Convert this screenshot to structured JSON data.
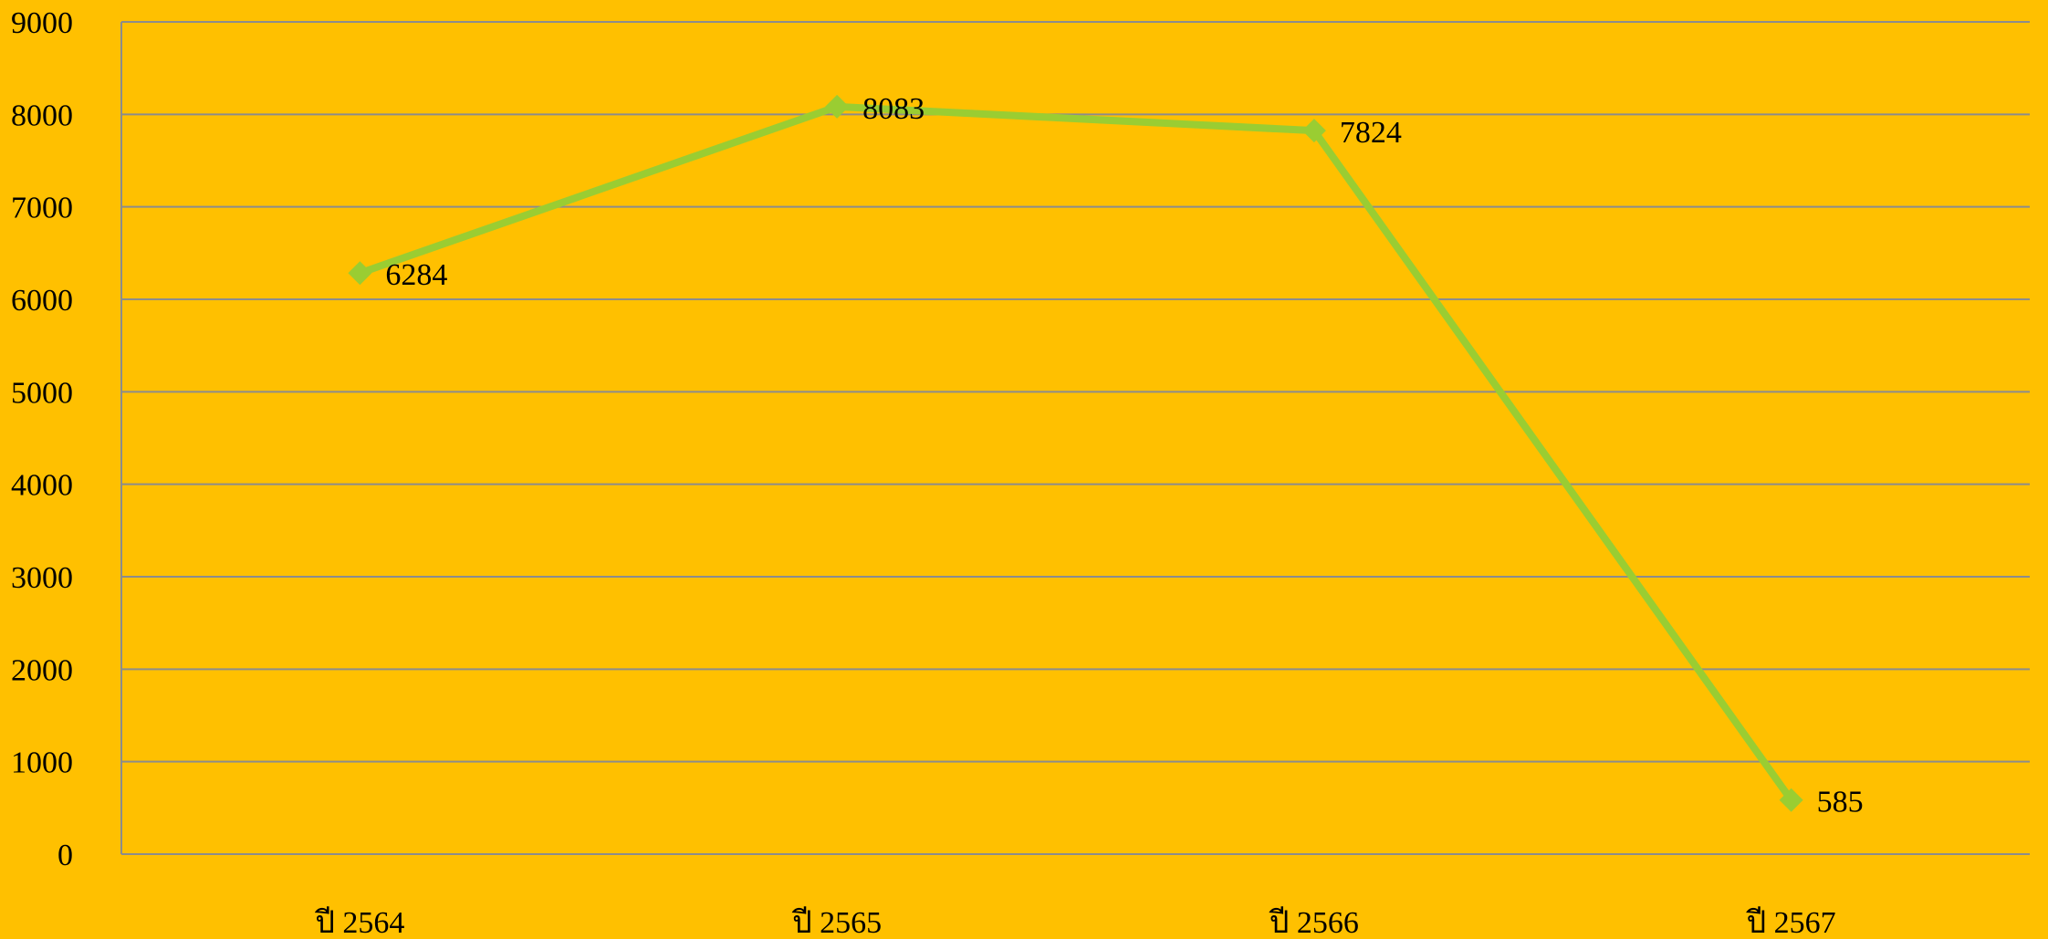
{
  "chart_data": {
    "type": "line",
    "title": "",
    "xlabel": "",
    "ylabel": "",
    "categories": [
      "ปี 2564",
      "ปี 2565",
      "ปี 2566",
      "ปี 2567"
    ],
    "series": [
      {
        "values": [
          6284,
          8083,
          7824,
          585
        ],
        "color": "#9ACD32"
      }
    ],
    "ylim": [
      0,
      9000
    ],
    "yticks": [
      0,
      1000,
      2000,
      3000,
      4000,
      5000,
      6000,
      7000,
      8000,
      9000
    ],
    "grid": true,
    "legend": "none",
    "data_labels": true,
    "background_color": "#FFC000",
    "gridline_color": "#8C8C8C",
    "marker": "diamond"
  }
}
